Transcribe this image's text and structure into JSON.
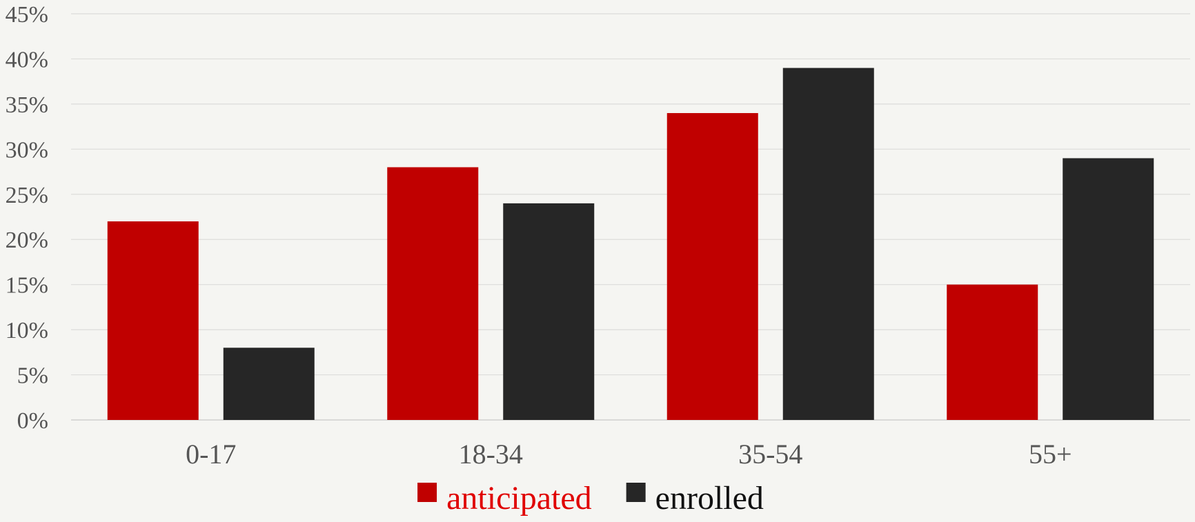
{
  "chart_data": {
    "type": "bar",
    "categories": [
      "0-17",
      "18-34",
      "35-54",
      "55+"
    ],
    "series": [
      {
        "name": "anticipated",
        "values": [
          22,
          28,
          34,
          15
        ],
        "color": "#c00000"
      },
      {
        "name": "enrolled",
        "values": [
          8,
          24,
          39,
          29
        ],
        "color": "#262626"
      }
    ],
    "title": "",
    "xlabel": "",
    "ylabel": "",
    "ylim": [
      0,
      45
    ],
    "ytick_step": 5,
    "ytick_format": "percent",
    "grid": true,
    "legend": {
      "position": "bottom-center",
      "text_colors": [
        "#e00000",
        "#111111"
      ]
    }
  }
}
